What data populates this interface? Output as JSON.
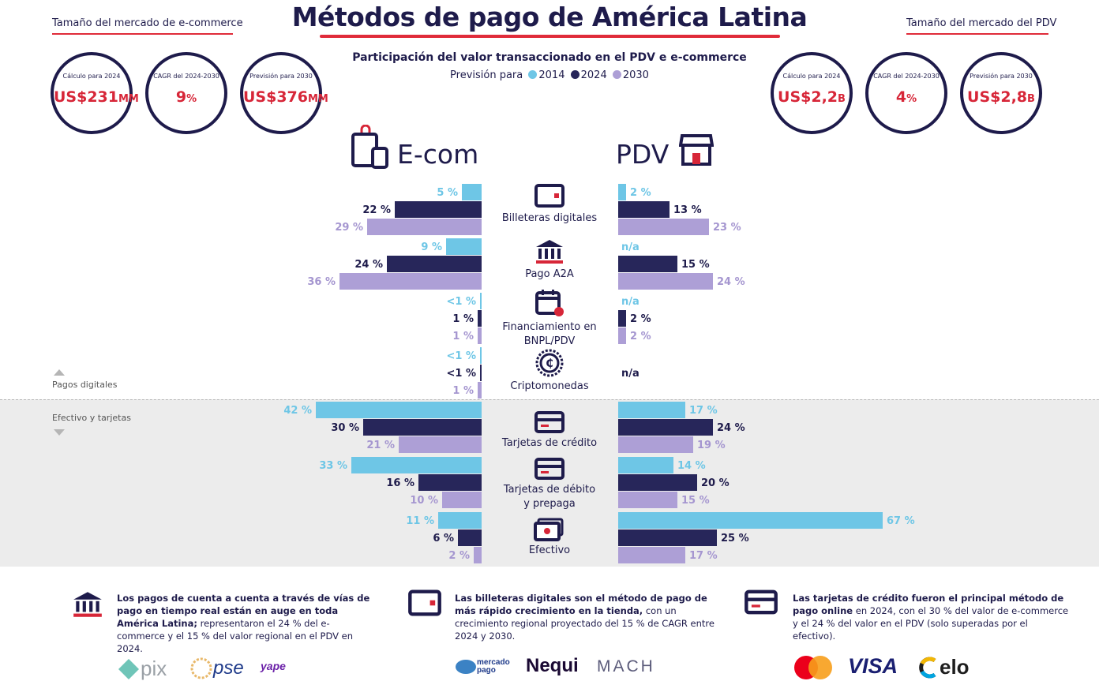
{
  "header": {
    "title": "Métodos de pago de América Latina",
    "left_title": "Tamaño del mercado de e-commerce",
    "right_title": "Tamaño del mercado del PDV",
    "subtitle": "Participación del valor transaccionado en el PDV e e-commerce",
    "legend_prefix": "Previsión para",
    "accent_color": "#e02b3a",
    "navy_color": "#1e1b4b"
  },
  "ecom_stats": [
    {
      "label": "Cálculo para 2024",
      "value": "US$231",
      "unit": "MM"
    },
    {
      "label": "CAGR del 2024-2030",
      "value": "9",
      "unit": "%"
    },
    {
      "label": "Previsión para 2030",
      "value": "US$376",
      "unit": "MM"
    }
  ],
  "pdv_stats": [
    {
      "label": "Cálculo para 2024",
      "value": "US$2,2",
      "unit": "B"
    },
    {
      "label": "CAGR del 2024-2030",
      "value": "4",
      "unit": "%"
    },
    {
      "label": "Previsión para 2030",
      "value": "US$2,8",
      "unit": "B"
    }
  ],
  "groups": {
    "digital": "Pagos digitales",
    "cash_cards": "Efectivo y tarjetas"
  },
  "chart_data": {
    "type": "bar",
    "orientation": "horizontal-butterfly",
    "left_panel": "E-com",
    "right_panel": "PDV",
    "series": [
      {
        "name": "2014",
        "color": "#6ec6e6"
      },
      {
        "name": "2024",
        "color": "#27265a"
      },
      {
        "name": "2030",
        "color": "#ad9fd6"
      }
    ],
    "categories": [
      {
        "name": "Billeteras digitales",
        "icon": "wallet-icon",
        "ecom": {
          "values": [
            5,
            22,
            29
          ],
          "labels": [
            "5 %",
            "22 %",
            "29 %"
          ]
        },
        "pdv": {
          "values": [
            2,
            13,
            23
          ],
          "labels": [
            "2 %",
            "13 %",
            "23 %"
          ]
        }
      },
      {
        "name": "Pago A2A",
        "icon": "bank-icon",
        "ecom": {
          "values": [
            9,
            24,
            36
          ],
          "labels": [
            "9 %",
            "24 %",
            "36 %"
          ]
        },
        "pdv": {
          "values": [
            null,
            15,
            24
          ],
          "labels": [
            "n/a",
            "15 %",
            "24 %"
          ]
        }
      },
      {
        "name": "Financiamiento en BNPL/PDV",
        "icon": "calendar-icon",
        "ecom": {
          "values": [
            0.4,
            1,
            1
          ],
          "labels": [
            "<1 %",
            "1 %",
            "1 %"
          ]
        },
        "pdv": {
          "values": [
            null,
            2,
            2
          ],
          "labels": [
            "n/a",
            "2 %",
            "2 %"
          ]
        }
      },
      {
        "name": "Criptomonedas",
        "icon": "crypto-coin-icon",
        "ecom": {
          "values": [
            0.4,
            0.4,
            1
          ],
          "labels": [
            "<1 %",
            "<1 %",
            "1 %"
          ]
        },
        "pdv": {
          "values": null,
          "labels": [
            "n/a"
          ]
        }
      },
      {
        "name": "Tarjetas de crédito",
        "icon": "credit-card-icon",
        "ecom": {
          "values": [
            42,
            30,
            21
          ],
          "labels": [
            "42 %",
            "30 %",
            "21 %"
          ]
        },
        "pdv": {
          "values": [
            17,
            24,
            19
          ],
          "labels": [
            "17 %",
            "24 %",
            "19 %"
          ]
        }
      },
      {
        "name": "Tarjetas de débito y prepaga",
        "icon": "debit-card-icon",
        "ecom": {
          "values": [
            33,
            16,
            10
          ],
          "labels": [
            "33 %",
            "16 %",
            "10 %"
          ]
        },
        "pdv": {
          "values": [
            14,
            20,
            15
          ],
          "labels": [
            "14 %",
            "20 %",
            "15 %"
          ]
        }
      },
      {
        "name": "Efectivo",
        "icon": "cash-icon",
        "ecom": {
          "values": [
            11,
            6,
            2
          ],
          "labels": [
            "11 %",
            "6 %",
            "2 %"
          ]
        },
        "pdv": {
          "values": [
            67,
            25,
            17
          ],
          "labels": [
            "67 %",
            "25 %",
            "17 %"
          ]
        }
      }
    ]
  },
  "footer": [
    {
      "icon": "bank-icon",
      "bold": "Los pagos de cuenta a cuenta a través de vías de pago en tiempo real están en auge en toda América Latina;",
      "text": " representaron el 24 % del e-commerce y el 15 % del valor regional en el PDV en 2024.",
      "brands": [
        "pix",
        "pse",
        "yape"
      ]
    },
    {
      "icon": "wallet-icon",
      "bold": "Las billeteras digitales son el método de pago de más rápido crecimiento en la tienda,",
      "text": " con un crecimiento regional proyectado del 15 % de CAGR entre 2024 y 2030.",
      "brands": [
        "mercado pago",
        "Nequi",
        "MACH"
      ]
    },
    {
      "icon": "credit-card-icon",
      "bold": "Las tarjetas de crédito fueron el principal método de pago online",
      "text": " en 2024, con el 30 % del valor de e-commerce y el 24 % del valor en el PDV (solo superadas por el efectivo).",
      "brands": [
        "VISA",
        "elo"
      ]
    }
  ]
}
